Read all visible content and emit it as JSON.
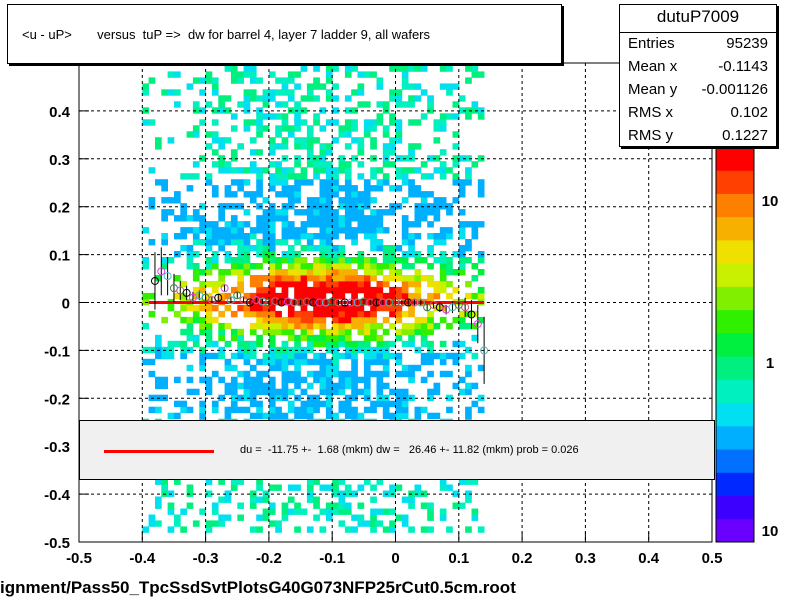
{
  "title": "<u - uP>       versus  tuP =>  dw for barrel 4, layer 7 ladder 9, all wafers",
  "stats": {
    "name": "dutuP7009",
    "rows": [
      {
        "key": "Entries",
        "value": "95239"
      },
      {
        "key": "Mean x",
        "value": "-0.1143"
      },
      {
        "key": "Mean y",
        "value": "-0.001126"
      },
      {
        "key": "RMS x",
        "value": "0.102"
      },
      {
        "key": "RMS y",
        "value": "0.1227"
      }
    ]
  },
  "legend": {
    "text": "du =  -11.75 +-  1.68 (mkm) dw =   26.46 +- 11.82 (mkm) prob = 0.026",
    "line_color": "#ff0000"
  },
  "footer": "ignment/Pass50_TpcSsdSvtPlotsG40G073NFP25rCut0.5cm.root",
  "chart_data": {
    "type": "heatmap",
    "title": "<u - uP>       versus  tuP =>  dw for barrel 4, layer 7 ladder 9, all wafers",
    "xlim": [
      -0.5,
      0.5
    ],
    "ylim": [
      -0.5,
      0.5
    ],
    "x_ticks": [
      "-0.5",
      "-0.4",
      "-0.3",
      "-0.2",
      "-0.1",
      "0",
      "0.1",
      "0.2",
      "0.3",
      "0.4",
      "0.5"
    ],
    "y_ticks": [
      "-0.5",
      "-0.4",
      "-0.3",
      "-0.2",
      "-0.1",
      "0",
      "0.1",
      "0.2",
      "0.3",
      "0.4"
    ],
    "grid": true,
    "colorbar": {
      "scale": "log",
      "labels": [
        "10",
        "1",
        "10"
      ]
    },
    "profile_points": {
      "x": [
        -0.38,
        -0.37,
        -0.36,
        -0.35,
        -0.34,
        -0.33,
        -0.32,
        -0.31,
        -0.3,
        -0.29,
        -0.28,
        -0.27,
        -0.26,
        -0.25,
        -0.24,
        -0.23,
        -0.22,
        -0.21,
        -0.2,
        -0.19,
        -0.18,
        -0.17,
        -0.16,
        -0.15,
        -0.14,
        -0.13,
        -0.12,
        -0.11,
        -0.1,
        -0.09,
        -0.08,
        -0.07,
        -0.06,
        -0.05,
        -0.04,
        -0.03,
        -0.02,
        -0.01,
        0.0,
        0.01,
        0.02,
        0.03,
        0.04,
        0.05,
        0.06,
        0.07,
        0.08,
        0.09,
        0.1,
        0.11,
        0.12,
        0.13,
        0.14
      ],
      "y": [
        0.045,
        0.065,
        0.055,
        0.03,
        0.025,
        0.02,
        0.01,
        0.015,
        0.01,
        0.005,
        0.01,
        0.03,
        0.005,
        0.015,
        0.005,
        0.0,
        0.005,
        0.002,
        0.0,
        0.003,
        0.0,
        0.002,
        0.0,
        0.0,
        0.002,
        0.0,
        0.0,
        0.0,
        0.002,
        0.0,
        0.0,
        0.0,
        0.0,
        0.002,
        0.0,
        0.0,
        0.0,
        0.0,
        0.0,
        0.0,
        0.0,
        0.0,
        0.0,
        -0.01,
        -0.005,
        -0.01,
        -0.015,
        -0.01,
        -0.005,
        -0.01,
        -0.025,
        -0.045,
        -0.1
      ],
      "y_err": [
        0.06,
        0.05,
        0.04,
        0.03,
        0.02,
        0.015,
        0.012,
        0.01,
        0.01,
        0.008,
        0.008,
        0.008,
        0.006,
        0.006,
        0.006,
        0.005,
        0.005,
        0.005,
        0.005,
        0.005,
        0.005,
        0.005,
        0.005,
        0.005,
        0.005,
        0.005,
        0.005,
        0.005,
        0.005,
        0.005,
        0.005,
        0.005,
        0.005,
        0.005,
        0.005,
        0.005,
        0.005,
        0.005,
        0.005,
        0.005,
        0.006,
        0.006,
        0.006,
        0.008,
        0.008,
        0.01,
        0.01,
        0.012,
        0.015,
        0.02,
        0.03,
        0.04,
        0.07
      ]
    },
    "fit_line": {
      "x": [
        -0.39,
        0.14
      ],
      "y": [
        0.0,
        0.0
      ],
      "color": "#ff0000"
    }
  }
}
